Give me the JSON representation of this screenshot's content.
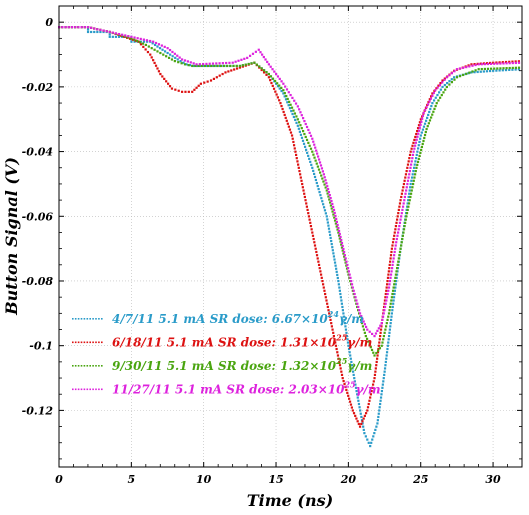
{
  "chart_data": {
    "type": "scatter",
    "title": "",
    "xlabel": "Time (ns)",
    "ylabel": "Button Signal (V)",
    "xlim": [
      0,
      32
    ],
    "ylim": [
      -0.1375,
      0.005
    ],
    "x_ticks": [
      0,
      5,
      10,
      15,
      20,
      25,
      30
    ],
    "y_ticks": [
      0,
      -0.02,
      -0.04,
      -0.06,
      -0.08,
      -0.1,
      -0.12
    ],
    "y_tick_labels": [
      "0",
      "-0.02",
      "-0.04",
      "-0.06",
      "-0.08",
      "-0.1",
      "-0.12"
    ],
    "grid": true,
    "legend_position": "bottom-left",
    "legend_labels": [
      {
        "date": "4/7/11 5.1 mA",
        "dose": "SR dose: 6.67×10",
        "exp": "24",
        "unit": "γ/m"
      },
      {
        "date": "6/18/11 5.1 mA",
        "dose": "SR dose: 1.31×10",
        "exp": "25",
        "unit": "γ/m"
      },
      {
        "date": "9/30/11 5.1 mA",
        "dose": "SR dose: 1.32×10",
        "exp": "25",
        "unit": "γ/m"
      },
      {
        "date": "11/27/11 5.1 mA",
        "dose": "SR dose: 2.03×10",
        "exp": "25",
        "unit": "γ/m"
      }
    ],
    "series": [
      {
        "color": "#2a9bc9",
        "points": [
          [
            0,
            -0.0015
          ],
          [
            2,
            -0.0015
          ],
          [
            2,
            -0.003
          ],
          [
            3.5,
            -0.003
          ],
          [
            3.5,
            -0.0045
          ],
          [
            5,
            -0.0045
          ],
          [
            5,
            -0.006
          ],
          [
            6.3,
            -0.006
          ],
          [
            6.8,
            -0.0075
          ],
          [
            7.5,
            -0.0095
          ],
          [
            8.2,
            -0.0115
          ],
          [
            8.8,
            -0.013
          ],
          [
            9.3,
            -0.0135
          ],
          [
            12.5,
            -0.0135
          ],
          [
            13.5,
            -0.0125
          ],
          [
            14.5,
            -0.016
          ],
          [
            15.5,
            -0.022
          ],
          [
            16.5,
            -0.032
          ],
          [
            17.5,
            -0.045
          ],
          [
            18.5,
            -0.06
          ],
          [
            19.3,
            -0.08
          ],
          [
            20,
            -0.1
          ],
          [
            20.6,
            -0.115
          ],
          [
            21.1,
            -0.127
          ],
          [
            21.5,
            -0.131
          ],
          [
            22,
            -0.124
          ],
          [
            22.5,
            -0.108
          ],
          [
            23,
            -0.09
          ],
          [
            23.6,
            -0.07
          ],
          [
            24.3,
            -0.05
          ],
          [
            25,
            -0.035
          ],
          [
            25.8,
            -0.025
          ],
          [
            26.5,
            -0.02
          ],
          [
            27.3,
            -0.017
          ],
          [
            28.5,
            -0.0155
          ],
          [
            30,
            -0.015
          ],
          [
            32,
            -0.0145
          ]
        ]
      },
      {
        "color": "#dd1111",
        "points": [
          [
            0,
            -0.0015
          ],
          [
            2,
            -0.0015
          ],
          [
            3.5,
            -0.003
          ],
          [
            4.5,
            -0.0045
          ],
          [
            5.5,
            -0.006
          ],
          [
            6.3,
            -0.01
          ],
          [
            7,
            -0.016
          ],
          [
            7.8,
            -0.0205
          ],
          [
            8.5,
            -0.0215
          ],
          [
            9.2,
            -0.0215
          ],
          [
            9.8,
            -0.019
          ],
          [
            10.5,
            -0.018
          ],
          [
            11.5,
            -0.0155
          ],
          [
            12.5,
            -0.014
          ],
          [
            13.5,
            -0.0125
          ],
          [
            14.5,
            -0.017
          ],
          [
            15.3,
            -0.025
          ],
          [
            16.1,
            -0.035
          ],
          [
            16.8,
            -0.05
          ],
          [
            17.5,
            -0.065
          ],
          [
            18.2,
            -0.08
          ],
          [
            18.9,
            -0.095
          ],
          [
            19.6,
            -0.11
          ],
          [
            20.3,
            -0.12
          ],
          [
            20.8,
            -0.125
          ],
          [
            21.3,
            -0.12
          ],
          [
            21.8,
            -0.11
          ],
          [
            22.4,
            -0.09
          ],
          [
            23,
            -0.07
          ],
          [
            23.6,
            -0.055
          ],
          [
            24.3,
            -0.04
          ],
          [
            25,
            -0.03
          ],
          [
            25.8,
            -0.022
          ],
          [
            26.5,
            -0.018
          ],
          [
            27.3,
            -0.015
          ],
          [
            28.5,
            -0.013
          ],
          [
            30,
            -0.0125
          ],
          [
            32,
            -0.012
          ]
        ]
      },
      {
        "color": "#4aa510",
        "points": [
          [
            0,
            -0.0015
          ],
          [
            2,
            -0.0015
          ],
          [
            3.5,
            -0.003
          ],
          [
            5,
            -0.005
          ],
          [
            6,
            -0.007
          ],
          [
            7,
            -0.0095
          ],
          [
            8,
            -0.012
          ],
          [
            8.7,
            -0.013
          ],
          [
            9.2,
            -0.0135
          ],
          [
            12.5,
            -0.0135
          ],
          [
            13.5,
            -0.0125
          ],
          [
            14.5,
            -0.016
          ],
          [
            15.5,
            -0.021
          ],
          [
            16.5,
            -0.03
          ],
          [
            17.5,
            -0.04
          ],
          [
            18.5,
            -0.052
          ],
          [
            19.3,
            -0.065
          ],
          [
            20,
            -0.078
          ],
          [
            20.6,
            -0.088
          ],
          [
            21.2,
            -0.097
          ],
          [
            21.8,
            -0.103
          ],
          [
            22.3,
            -0.1
          ],
          [
            22.8,
            -0.09
          ],
          [
            23.4,
            -0.075
          ],
          [
            24,
            -0.06
          ],
          [
            24.7,
            -0.045
          ],
          [
            25.4,
            -0.033
          ],
          [
            26.1,
            -0.025
          ],
          [
            26.8,
            -0.02
          ],
          [
            27.5,
            -0.017
          ],
          [
            29,
            -0.0145
          ],
          [
            32,
            -0.014
          ]
        ]
      },
      {
        "color": "#dd22dd",
        "points": [
          [
            0,
            -0.0015
          ],
          [
            2,
            -0.0015
          ],
          [
            3.5,
            -0.003
          ],
          [
            5,
            -0.0045
          ],
          [
            6.5,
            -0.006
          ],
          [
            7.5,
            -0.008
          ],
          [
            8.5,
            -0.0115
          ],
          [
            9.5,
            -0.013
          ],
          [
            12,
            -0.0125
          ],
          [
            13,
            -0.011
          ],
          [
            13.8,
            -0.0085
          ],
          [
            14.5,
            -0.013
          ],
          [
            15.5,
            -0.019
          ],
          [
            16.5,
            -0.026
          ],
          [
            17.5,
            -0.036
          ],
          [
            18.3,
            -0.047
          ],
          [
            19,
            -0.058
          ],
          [
            19.7,
            -0.071
          ],
          [
            20.3,
            -0.082
          ],
          [
            20.8,
            -0.09
          ],
          [
            21.3,
            -0.095
          ],
          [
            21.8,
            -0.097
          ],
          [
            22.3,
            -0.093
          ],
          [
            22.8,
            -0.082
          ],
          [
            23.3,
            -0.068
          ],
          [
            23.9,
            -0.054
          ],
          [
            24.5,
            -0.04
          ],
          [
            25.2,
            -0.028
          ],
          [
            26,
            -0.021
          ],
          [
            26.8,
            -0.017
          ],
          [
            27.5,
            -0.0145
          ],
          [
            29,
            -0.013
          ],
          [
            32,
            -0.0125
          ]
        ]
      }
    ]
  }
}
